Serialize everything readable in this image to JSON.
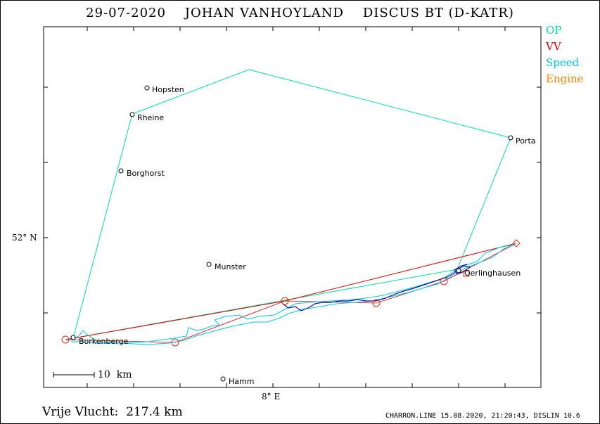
{
  "title": "29-07-2020    JOHAN VANHOYLAND    DISCUS BT (D-KATR)",
  "legend": [
    {
      "label": "OP",
      "color": "#00e0a0"
    },
    {
      "label": "VV",
      "color": "#e00000"
    },
    {
      "label": "Speed",
      "color": "#00c8e8"
    },
    {
      "label": "Engine",
      "color": "#ff8000"
    }
  ],
  "axes": {
    "lat_label": "52° N",
    "lon_label": "8° E"
  },
  "places": [
    "Hopsten",
    "Rheine",
    "Porta",
    "Borghorst",
    "Munster",
    "Oerlinghausen",
    "Borkenberge",
    "Hamm"
  ],
  "scale_label": "10  km",
  "footer": {
    "distance": "Vrije Vlucht:  217.4 km",
    "credit": "CHARRON.LINE 15.08.2020, 21:20:43, DISLIN 10.6"
  },
  "colors": {
    "op": "#00e0a0",
    "vv": "#e00000",
    "speed": "#00c8e8",
    "track_dark": "#1010a0",
    "waypoint": "#e03010"
  }
}
